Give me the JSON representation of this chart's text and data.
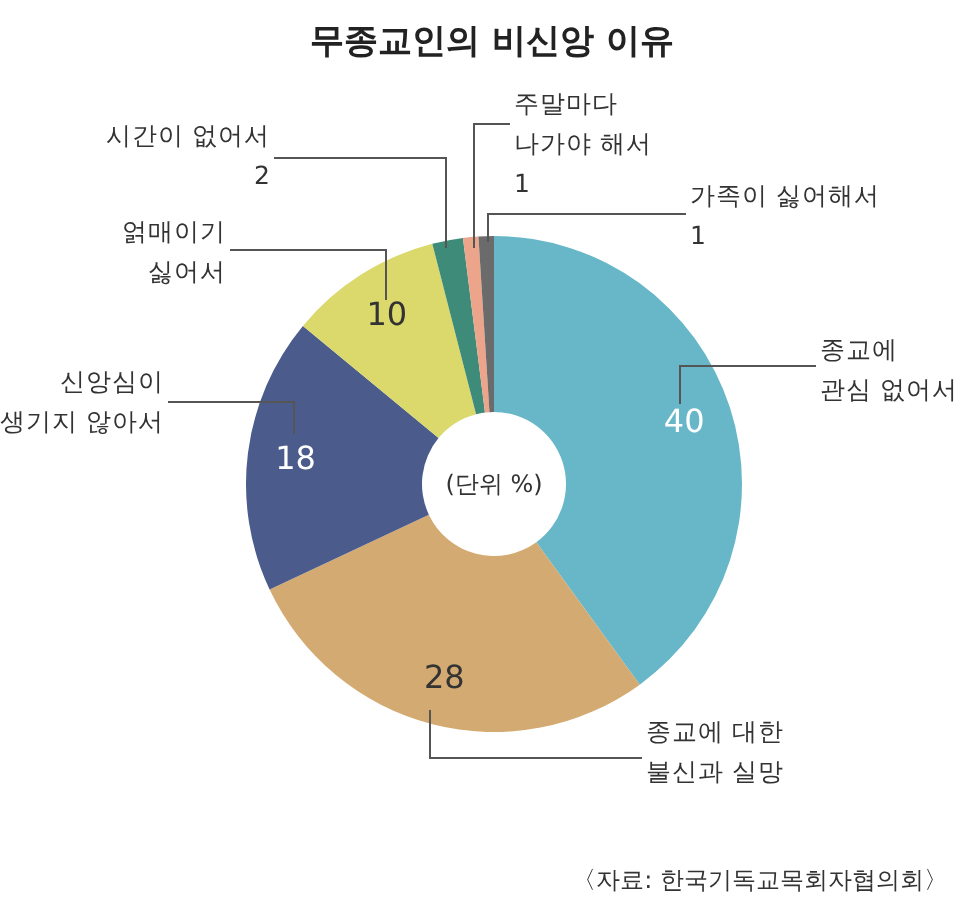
{
  "chart_data": {
    "type": "donut",
    "title": "무종교인의 비신앙 이유",
    "categories": [
      "종교에\n관심 없어서",
      "종교에 대한\n불신과 실망",
      "신앙심이\n생기지 않아서",
      "얽매이기\n싫어서",
      "시간이 없어서",
      "주말마다\n나가야 해서",
      "가족이 싫어해서"
    ],
    "values": [
      40,
      28,
      18,
      10,
      2,
      1,
      1
    ],
    "colors": [
      "#67b7c8",
      "#d3ab72",
      "#4a5b8c",
      "#dbd86c",
      "#3d8b78",
      "#eca58a",
      "#6b6b6b"
    ],
    "data_labels": true,
    "annotations": [
      "(단위 %)",
      "〈자료: 한국기독교목회자협의회〉"
    ]
  }
}
